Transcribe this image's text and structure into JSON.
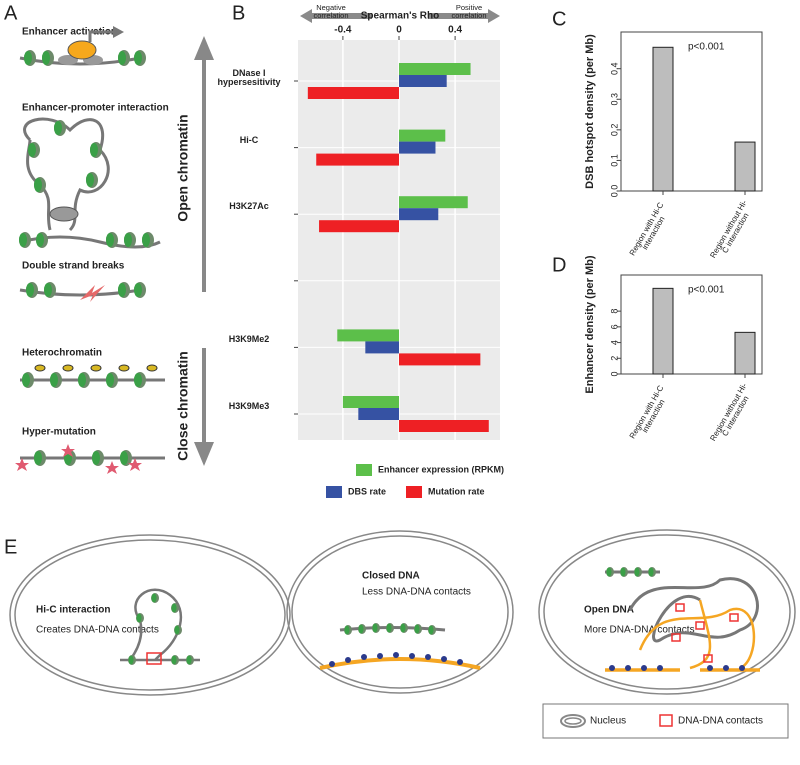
{
  "panels": {
    "labels": [
      "A",
      "B",
      "C",
      "D",
      "E"
    ]
  },
  "diagram_a": {
    "steps": [
      "Enhancer activation",
      "Enhancer-promoter interaction",
      "Double strand breaks",
      "Heterochromatin",
      "Hyper-mutation"
    ],
    "arrows": [
      "Open chromatin",
      "Close chromatin"
    ]
  },
  "chart_data": [
    {
      "type": "bar",
      "orientation": "horizontal",
      "title": "Spearman's Rho",
      "annotations": [
        "Negative correlation",
        "Positive correlation"
      ],
      "categories": [
        "DNase I hypersesitivity",
        "Hi-C",
        "H3K27Ac",
        null,
        "H3K9Me2",
        "H3K9Me3"
      ],
      "series": [
        {
          "name": "Enhancer expression (RPKM)",
          "color": "#5cbf4a",
          "values": [
            0.51,
            0.33,
            0.49,
            null,
            -0.44,
            -0.4
          ]
        },
        {
          "name": "DBS rate",
          "color": "#3652a3",
          "values": [
            0.34,
            0.26,
            0.28,
            null,
            -0.24,
            -0.29
          ]
        },
        {
          "name": "Mutation rate",
          "color": "#ee2024",
          "values": [
            -0.65,
            -0.59,
            -0.57,
            null,
            0.58,
            0.64
          ]
        }
      ],
      "xlim": [
        -0.72,
        0.72
      ],
      "xticks": [
        -0.4,
        0,
        0.4
      ],
      "grid": true,
      "background": "#ebebeb"
    },
    {
      "type": "bar",
      "ylabel": "DSB hotspot density (per Mb)",
      "annotations": [
        "p<0.001"
      ],
      "categories": [
        "Region with Hi-C interaction",
        "Region without Hi-C interaction"
      ],
      "values": [
        0.47,
        0.16
      ],
      "color": "#bdbdbd",
      "ylim": [
        0,
        0.52
      ],
      "yticks": [
        {
          "value": 0,
          "label": "0.0"
        },
        0.1,
        0.2,
        0.3,
        0.4
      ]
    },
    {
      "type": "bar",
      "ylabel": "Enhancer density (per Mb)",
      "annotations": [
        "p<0.001"
      ],
      "categories": [
        "Region with Hi-C interaction",
        "Region without Hi-C interaction"
      ],
      "values": [
        10.9,
        5.3
      ],
      "color": "#bdbdbd",
      "ylim": [
        0,
        12.6
      ],
      "yticks": [
        0,
        2,
        4,
        6,
        8
      ]
    }
  ],
  "diagram_e": {
    "cells": [
      {
        "title": "Hi-C interaction",
        "text": "Creates DNA-DNA contacts"
      },
      {
        "title": "Closed DNA",
        "text": "Less DNA-DNA contacts"
      },
      {
        "title": "Open DNA",
        "text": "More DNA-DNA contacts"
      }
    ],
    "legend": [
      "Nucleus",
      "DNA-DNA contacts"
    ]
  }
}
